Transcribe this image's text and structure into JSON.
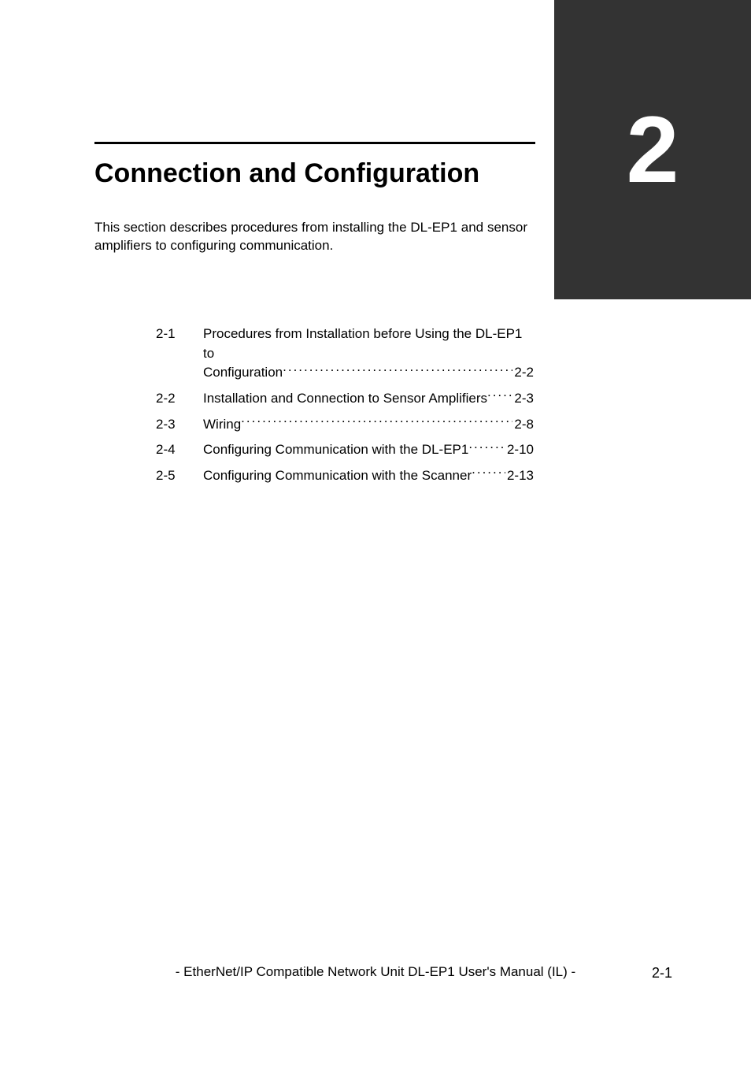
{
  "chapter": {
    "number": "2",
    "title": "Connection and Configuration",
    "intro": "This section describes procedures from installing the DL-EP1 and sensor amplifiers to configuring communication.",
    "tab_bg": "#333333",
    "tab_fg": "#ffffff",
    "tab_fontsize": 120,
    "title_fontsize": 34
  },
  "toc": {
    "items": [
      {
        "num": "2-1",
        "text_line1": "Procedures from Installation before Using the DL-EP1 to",
        "text_line2": "Configuration",
        "page": "2-2"
      },
      {
        "num": "2-2",
        "text_line1": "",
        "text_line2": "Installation and Connection to Sensor Amplifiers ",
        "page": "2-3"
      },
      {
        "num": "2-3",
        "text_line1": "",
        "text_line2": "Wiring ",
        "page": "2-8"
      },
      {
        "num": "2-4",
        "text_line1": "",
        "text_line2": "Configuring Communication with the DL-EP1",
        "page": "2-10"
      },
      {
        "num": "2-5",
        "text_line1": "",
        "text_line2": "Configuring Communication with the Scanner ",
        "page": "2-13"
      }
    ]
  },
  "footer": {
    "text": "- EtherNet/IP Compatible Network Unit DL-EP1 User's Manual (IL) -",
    "page_number": "2-1"
  }
}
